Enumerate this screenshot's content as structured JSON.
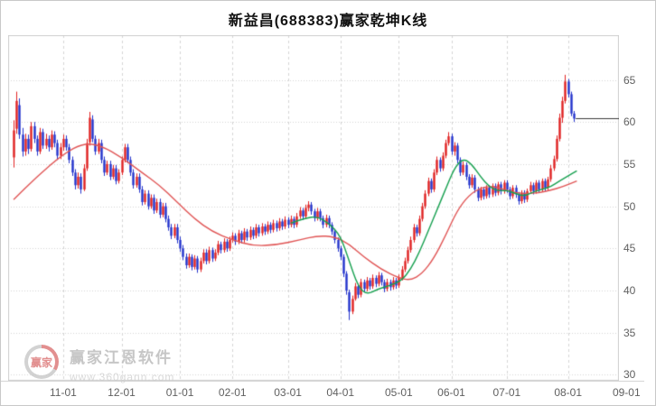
{
  "watermark": {
    "brand": "赢家江恩软件",
    "url": "www.360gann.com",
    "logo_text": "赢家"
  },
  "chart_data": {
    "type": "candlestick",
    "title": "新益昌(688383)赢家乾坤K线",
    "ylabel": "",
    "xlabel": "",
    "grid": true,
    "y_ticks": [
      30,
      35,
      40,
      45,
      50,
      55,
      60,
      65
    ],
    "y_range": [
      29.3,
      70.3
    ],
    "x_ticks": [
      {
        "label": "11-01",
        "day": 17
      },
      {
        "label": "12-01",
        "day": 37
      },
      {
        "label": "01-01",
        "day": 57
      },
      {
        "label": "02-01",
        "day": 75
      },
      {
        "label": "03-01",
        "day": 94
      },
      {
        "label": "04-01",
        "day": 112
      },
      {
        "label": "05-01",
        "day": 132
      },
      {
        "label": "06-01",
        "day": 150
      },
      {
        "label": "07-01",
        "day": 169
      },
      {
        "label": "08-01",
        "day": 190
      },
      {
        "label": "09-01",
        "day": 210
      }
    ],
    "last_price": 60.4,
    "colors": {
      "up": "#e02222",
      "down": "#2333cc",
      "ma_red": "#e05555",
      "ma_green": "#17a050",
      "grid": "#d4d4d4",
      "border": "#cfcfcf",
      "last_price_line": "#3a3a3a"
    },
    "candles": [
      [
        55.8,
        60.2,
        54.6,
        59.0
      ],
      [
        59.2,
        63.6,
        58.6,
        62.5
      ],
      [
        62.0,
        62.8,
        58.0,
        58.5
      ],
      [
        58.5,
        59.3,
        55.9,
        56.5
      ],
      [
        56.5,
        58.6,
        56.0,
        58.0
      ],
      [
        58.0,
        58.5,
        56.2,
        56.8
      ],
      [
        56.8,
        60.0,
        56.5,
        59.5
      ],
      [
        59.5,
        60.0,
        57.5,
        58.0
      ],
      [
        58.0,
        58.4,
        56.0,
        56.5
      ],
      [
        56.5,
        59.3,
        56.2,
        58.8
      ],
      [
        58.8,
        59.2,
        56.8,
        57.2
      ],
      [
        57.2,
        58.6,
        56.8,
        58.0
      ],
      [
        58.0,
        58.4,
        56.5,
        57.0
      ],
      [
        57.0,
        59.0,
        56.7,
        58.5
      ],
      [
        58.5,
        58.9,
        57.0,
        57.5
      ],
      [
        57.5,
        57.9,
        55.5,
        56.0
      ],
      [
        56.0,
        57.5,
        55.6,
        57.0
      ],
      [
        57.0,
        58.5,
        56.6,
        58.0
      ],
      [
        58.0,
        58.4,
        56.6,
        57.0
      ],
      [
        57.0,
        57.4,
        55.1,
        55.5
      ],
      [
        55.5,
        55.9,
        53.6,
        54.0
      ],
      [
        54.0,
        54.4,
        52.0,
        52.5
      ],
      [
        52.5,
        54.0,
        52.1,
        53.5
      ],
      [
        53.5,
        53.9,
        51.5,
        52.0
      ],
      [
        52.0,
        55.0,
        51.8,
        54.5
      ],
      [
        54.5,
        58.0,
        54.2,
        57.5
      ],
      [
        57.6,
        61.2,
        57.2,
        60.5
      ],
      [
        60.3,
        60.8,
        57.6,
        58.0
      ],
      [
        58.0,
        58.4,
        56.1,
        56.5
      ],
      [
        56.5,
        58.0,
        56.2,
        57.5
      ],
      [
        57.5,
        57.9,
        55.1,
        55.5
      ],
      [
        55.5,
        55.9,
        53.6,
        54.0
      ],
      [
        54.0,
        55.4,
        53.7,
        55.0
      ],
      [
        55.0,
        55.4,
        53.1,
        53.5
      ],
      [
        53.5,
        54.9,
        53.2,
        54.5
      ],
      [
        54.5,
        54.9,
        52.6,
        53.0
      ],
      [
        53.0,
        54.4,
        52.7,
        54.0
      ],
      [
        54.0,
        55.9,
        53.7,
        55.5
      ],
      [
        55.5,
        57.4,
        55.2,
        57.0
      ],
      [
        57.0,
        57.4,
        55.1,
        55.5
      ],
      [
        55.5,
        55.9,
        53.6,
        54.0
      ],
      [
        54.0,
        54.4,
        52.1,
        52.5
      ],
      [
        52.5,
        53.9,
        52.2,
        53.5
      ],
      [
        53.5,
        53.9,
        51.6,
        52.0
      ],
      [
        52.0,
        52.4,
        50.1,
        50.5
      ],
      [
        50.5,
        51.9,
        50.2,
        51.5
      ],
      [
        51.5,
        51.9,
        49.6,
        50.0
      ],
      [
        50.0,
        51.4,
        49.7,
        51.0
      ],
      [
        51.0,
        51.4,
        49.1,
        49.5
      ],
      [
        49.5,
        50.9,
        49.2,
        50.5
      ],
      [
        50.5,
        50.9,
        48.6,
        49.0
      ],
      [
        49.0,
        50.4,
        48.7,
        50.0
      ],
      [
        50.0,
        50.4,
        48.1,
        48.5
      ],
      [
        48.5,
        48.9,
        47.1,
        47.5
      ],
      [
        47.5,
        47.9,
        46.1,
        46.5
      ],
      [
        46.5,
        47.9,
        46.2,
        47.5
      ],
      [
        47.5,
        47.9,
        45.6,
        46.0
      ],
      [
        46.0,
        46.4,
        44.6,
        45.0
      ],
      [
        45.0,
        45.4,
        43.6,
        44.0
      ],
      [
        44.0,
        44.4,
        42.6,
        43.0
      ],
      [
        43.0,
        44.4,
        42.7,
        44.0
      ],
      [
        44.0,
        44.3,
        42.4,
        42.8
      ],
      [
        42.8,
        44.2,
        42.5,
        43.8
      ],
      [
        43.8,
        44.1,
        42.1,
        42.5
      ],
      [
        42.5,
        43.9,
        42.2,
        43.5
      ],
      [
        43.5,
        44.9,
        43.2,
        44.5
      ],
      [
        44.5,
        44.9,
        43.1,
        43.5
      ],
      [
        43.5,
        45.2,
        43.2,
        44.8
      ],
      [
        44.8,
        45.1,
        43.4,
        43.8
      ],
      [
        43.8,
        44.9,
        43.5,
        44.5
      ],
      [
        44.5,
        45.9,
        44.2,
        45.5
      ],
      [
        45.5,
        45.8,
        44.4,
        44.8
      ],
      [
        44.8,
        46.2,
        44.5,
        45.8
      ],
      [
        45.8,
        46.1,
        44.6,
        45.0
      ],
      [
        45.0,
        46.4,
        44.7,
        46.0
      ],
      [
        46.0,
        46.9,
        45.7,
        46.5
      ],
      [
        46.5,
        46.8,
        45.4,
        45.8
      ],
      [
        45.8,
        47.2,
        45.5,
        46.8
      ],
      [
        46.8,
        47.1,
        45.6,
        46.0
      ],
      [
        46.0,
        47.4,
        45.7,
        47.0
      ],
      [
        47.0,
        47.3,
        45.9,
        46.3
      ],
      [
        46.3,
        47.6,
        46.0,
        47.2
      ],
      [
        47.2,
        47.5,
        46.1,
        46.5
      ],
      [
        46.5,
        47.9,
        46.2,
        47.5
      ],
      [
        47.5,
        47.8,
        46.4,
        46.8
      ],
      [
        46.8,
        48.0,
        46.5,
        47.6
      ],
      [
        47.6,
        47.9,
        46.6,
        47.0
      ],
      [
        47.0,
        48.2,
        46.7,
        47.8
      ],
      [
        47.8,
        48.1,
        46.8,
        47.2
      ],
      [
        47.2,
        48.4,
        46.9,
        48.0
      ],
      [
        48.0,
        48.3,
        47.0,
        47.4
      ],
      [
        47.4,
        48.6,
        47.1,
        48.2
      ],
      [
        48.2,
        48.5,
        47.2,
        47.6
      ],
      [
        47.6,
        48.8,
        47.3,
        48.4
      ],
      [
        48.4,
        48.7,
        47.4,
        47.8
      ],
      [
        47.8,
        48.9,
        47.5,
        48.5
      ],
      [
        48.5,
        48.8,
        47.4,
        47.8
      ],
      [
        47.8,
        49.2,
        47.5,
        48.8
      ],
      [
        48.8,
        49.9,
        48.5,
        49.5
      ],
      [
        49.5,
        49.8,
        48.4,
        48.8
      ],
      [
        48.8,
        50.2,
        48.5,
        49.8
      ],
      [
        49.8,
        50.6,
        49.4,
        50.2
      ],
      [
        50.2,
        50.5,
        49.0,
        49.4
      ],
      [
        49.4,
        49.7,
        48.2,
        48.6
      ],
      [
        48.6,
        49.8,
        48.3,
        49.4
      ],
      [
        49.4,
        49.7,
        48.2,
        48.6
      ],
      [
        48.6,
        48.9,
        47.4,
        47.8
      ],
      [
        47.8,
        49.0,
        47.5,
        48.6
      ],
      [
        48.6,
        48.9,
        47.4,
        47.8
      ],
      [
        47.8,
        48.1,
        46.6,
        47.0
      ],
      [
        47.0,
        47.3,
        45.6,
        46.0
      ],
      [
        46.0,
        46.3,
        44.6,
        45.0
      ],
      [
        45.0,
        45.3,
        43.6,
        44.0
      ],
      [
        44.0,
        44.3,
        41.6,
        42.0
      ],
      [
        42.0,
        42.3,
        39.5,
        40.0
      ],
      [
        39.8,
        40.1,
        36.5,
        37.5
      ],
      [
        37.5,
        39.4,
        37.2,
        39.0
      ],
      [
        39.0,
        40.9,
        38.8,
        40.5
      ],
      [
        40.5,
        40.8,
        39.1,
        39.5
      ],
      [
        39.5,
        41.4,
        39.2,
        41.0
      ],
      [
        41.0,
        41.3,
        39.8,
        40.2
      ],
      [
        40.2,
        41.6,
        39.9,
        41.2
      ],
      [
        41.2,
        41.5,
        40.1,
        40.5
      ],
      [
        40.5,
        41.9,
        40.2,
        41.5
      ],
      [
        41.5,
        41.8,
        40.4,
        40.8
      ],
      [
        40.8,
        42.2,
        40.5,
        41.8
      ],
      [
        41.8,
        42.1,
        40.6,
        41.0
      ],
      [
        41.0,
        41.3,
        39.8,
        40.2
      ],
      [
        40.2,
        41.4,
        39.9,
        41.0
      ],
      [
        41.0,
        41.3,
        40.0,
        40.4
      ],
      [
        40.4,
        41.6,
        40.1,
        41.2
      ],
      [
        41.2,
        41.5,
        40.2,
        40.6
      ],
      [
        40.6,
        41.9,
        40.3,
        41.5
      ],
      [
        41.5,
        42.9,
        41.2,
        42.5
      ],
      [
        42.5,
        43.9,
        42.2,
        43.5
      ],
      [
        43.5,
        45.2,
        43.2,
        44.8
      ],
      [
        44.8,
        46.4,
        44.5,
        46.0
      ],
      [
        46.0,
        47.9,
        45.7,
        47.5
      ],
      [
        47.5,
        47.8,
        46.4,
        46.8
      ],
      [
        46.8,
        48.9,
        46.5,
        48.5
      ],
      [
        48.5,
        50.4,
        48.2,
        50.0
      ],
      [
        50.0,
        51.9,
        49.7,
        51.5
      ],
      [
        51.5,
        53.4,
        51.2,
        53.0
      ],
      [
        53.0,
        53.3,
        51.6,
        52.0
      ],
      [
        52.0,
        54.4,
        51.7,
        54.0
      ],
      [
        54.0,
        55.9,
        53.7,
        55.5
      ],
      [
        55.5,
        55.8,
        54.1,
        54.5
      ],
      [
        54.5,
        56.4,
        54.2,
        56.0
      ],
      [
        56.0,
        57.9,
        55.7,
        57.5
      ],
      [
        57.5,
        58.8,
        57.2,
        58.3
      ],
      [
        58.3,
        58.6,
        56.1,
        56.5
      ],
      [
        56.5,
        57.6,
        56.0,
        57.2
      ],
      [
        57.2,
        57.5,
        55.1,
        55.5
      ],
      [
        55.5,
        55.8,
        53.6,
        54.0
      ],
      [
        54.0,
        55.3,
        53.7,
        54.9
      ],
      [
        54.9,
        55.2,
        53.1,
        53.5
      ],
      [
        53.5,
        53.8,
        52.1,
        52.5
      ],
      [
        52.5,
        53.8,
        52.2,
        53.4
      ],
      [
        53.4,
        53.7,
        51.6,
        52.0
      ],
      [
        52.0,
        52.3,
        50.6,
        51.0
      ],
      [
        51.0,
        52.3,
        50.7,
        52.0
      ],
      [
        52.0,
        52.3,
        50.8,
        51.2
      ],
      [
        51.2,
        52.5,
        50.9,
        52.2
      ],
      [
        52.2,
        52.5,
        51.0,
        51.4
      ],
      [
        51.4,
        52.7,
        51.1,
        52.4
      ],
      [
        52.4,
        52.7,
        51.2,
        51.6
      ],
      [
        51.6,
        52.9,
        51.3,
        52.6
      ],
      [
        52.6,
        52.9,
        51.4,
        51.8
      ],
      [
        51.8,
        53.1,
        51.5,
        52.8
      ],
      [
        52.8,
        53.1,
        51.6,
        52.0
      ],
      [
        52.0,
        52.3,
        50.8,
        51.2
      ],
      [
        51.2,
        52.5,
        50.9,
        52.2
      ],
      [
        52.2,
        52.5,
        51.0,
        51.4
      ],
      [
        51.4,
        51.7,
        50.2,
        50.6
      ],
      [
        50.6,
        51.9,
        50.3,
        51.6
      ],
      [
        51.6,
        51.9,
        50.4,
        50.8
      ],
      [
        50.8,
        52.1,
        50.5,
        51.8
      ],
      [
        51.8,
        52.9,
        51.5,
        52.5
      ],
      [
        52.5,
        52.8,
        51.4,
        51.8
      ],
      [
        51.8,
        53.1,
        51.5,
        52.8
      ],
      [
        52.8,
        53.1,
        51.6,
        52.0
      ],
      [
        52.0,
        53.3,
        51.7,
        53.0
      ],
      [
        53.0,
        53.3,
        51.8,
        52.2
      ],
      [
        52.2,
        53.5,
        51.9,
        53.2
      ],
      [
        53.2,
        54.9,
        52.9,
        54.5
      ],
      [
        54.5,
        56.0,
        54.2,
        55.6
      ],
      [
        55.6,
        58.4,
        55.3,
        58.0
      ],
      [
        58.0,
        61.0,
        57.7,
        60.5
      ],
      [
        60.5,
        63.0,
        59.9,
        62.5
      ],
      [
        62.5,
        65.6,
        62.2,
        64.8
      ],
      [
        64.8,
        65.1,
        62.9,
        63.3
      ],
      [
        63.3,
        63.6,
        60.7,
        61.0
      ],
      [
        61.0,
        61.3,
        60.0,
        60.4
      ]
    ],
    "ma_red": [
      [
        0,
        50.8
      ],
      [
        8,
        53.5
      ],
      [
        17,
        56.2
      ],
      [
        24,
        57.5
      ],
      [
        30,
        57.2
      ],
      [
        37,
        55.8
      ],
      [
        44,
        54.0
      ],
      [
        50,
        52.5
      ],
      [
        56,
        50.5
      ],
      [
        62,
        48.5
      ],
      [
        68,
        47.0
      ],
      [
        75,
        46.0
      ],
      [
        82,
        45.3
      ],
      [
        90,
        45.4
      ],
      [
        98,
        46.0
      ],
      [
        104,
        46.5
      ],
      [
        110,
        46.4
      ],
      [
        115,
        45.5
      ],
      [
        120,
        44.0
      ],
      [
        126,
        42.5
      ],
      [
        132,
        41.5
      ],
      [
        136,
        41.2
      ],
      [
        140,
        42.0
      ],
      [
        144,
        43.8
      ],
      [
        148,
        46.5
      ],
      [
        152,
        49.5
      ],
      [
        156,
        51.3
      ],
      [
        160,
        52.2
      ],
      [
        164,
        52.4
      ],
      [
        168,
        52.0
      ],
      [
        172,
        51.6
      ],
      [
        176,
        51.5
      ],
      [
        180,
        51.6
      ],
      [
        184,
        51.9
      ],
      [
        188,
        52.3
      ],
      [
        193,
        53.0
      ]
    ],
    "ma_green": [
      [
        95,
        48.0
      ],
      [
        100,
        48.6
      ],
      [
        104,
        48.8
      ],
      [
        108,
        48.0
      ],
      [
        112,
        46.5
      ],
      [
        115,
        43.5
      ],
      [
        118,
        40.5
      ],
      [
        121,
        39.5
      ],
      [
        125,
        40.2
      ],
      [
        129,
        40.6
      ],
      [
        133,
        41.2
      ],
      [
        136,
        42.5
      ],
      [
        139,
        44.5
      ],
      [
        142,
        47.0
      ],
      [
        145,
        49.5
      ],
      [
        148,
        52.0
      ],
      [
        151,
        54.5
      ],
      [
        154,
        55.7
      ],
      [
        157,
        55.0
      ],
      [
        160,
        53.5
      ],
      [
        163,
        52.3
      ],
      [
        166,
        51.8
      ],
      [
        169,
        51.9
      ],
      [
        172,
        51.5
      ],
      [
        175,
        51.2
      ],
      [
        178,
        51.7
      ],
      [
        181,
        52.0
      ],
      [
        184,
        52.3
      ],
      [
        187,
        53.0
      ],
      [
        190,
        53.6
      ],
      [
        193,
        54.2
      ]
    ]
  }
}
